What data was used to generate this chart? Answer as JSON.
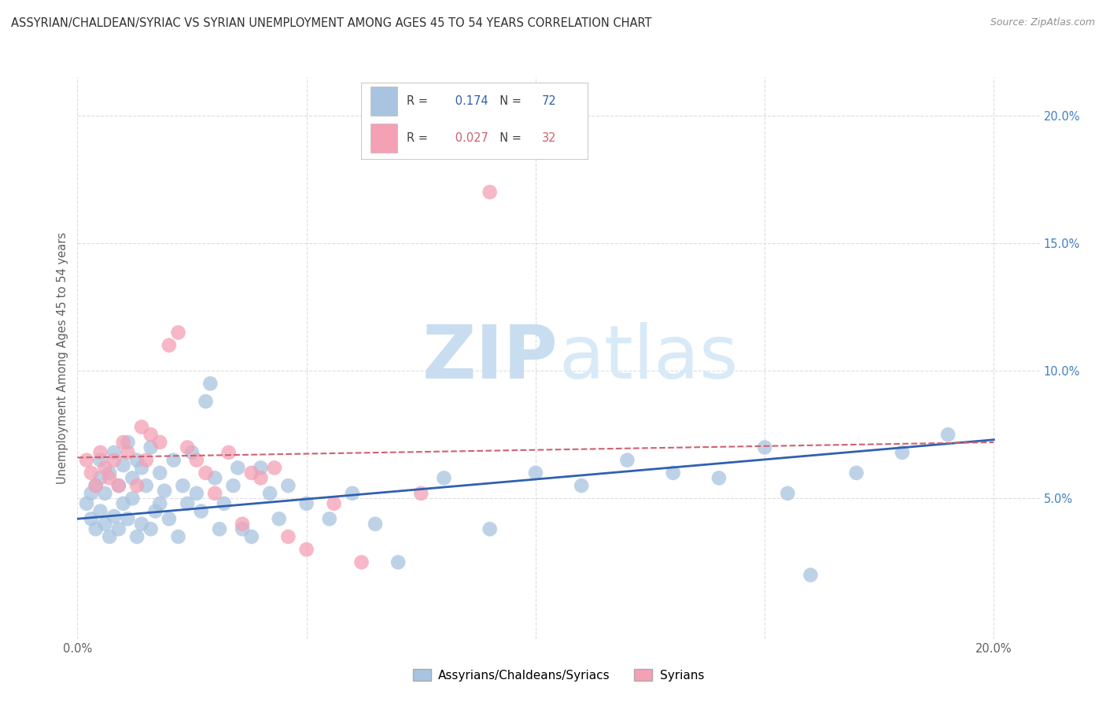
{
  "title": "ASSYRIAN/CHALDEAN/SYRIAC VS SYRIAN UNEMPLOYMENT AMONG AGES 45 TO 54 YEARS CORRELATION CHART",
  "source": "Source: ZipAtlas.com",
  "ylabel": "Unemployment Among Ages 45 to 54 years",
  "xlim": [
    0.0,
    0.21
  ],
  "ylim": [
    -0.005,
    0.215
  ],
  "yticks": [
    0.05,
    0.1,
    0.15,
    0.2
  ],
  "ytick_labels": [
    "5.0%",
    "10.0%",
    "15.0%",
    "20.0%"
  ],
  "xticks": [
    0.0,
    0.05,
    0.1,
    0.15,
    0.2
  ],
  "xtick_labels": [
    "0.0%",
    "",
    "",
    "",
    "20.0%"
  ],
  "blue_R": 0.174,
  "blue_N": 72,
  "pink_R": 0.027,
  "pink_N": 32,
  "blue_color": "#a8c4e0",
  "pink_color": "#f4a0b5",
  "blue_line_color": "#3060b0",
  "pink_line_color": "#d06070",
  "watermark_zip": "ZIP",
  "watermark_atlas": "atlas",
  "watermark_color": "#ddeeff",
  "background_color": "#ffffff",
  "grid_color": "#dddddd",
  "title_color": "#303030",
  "source_color": "#909090",
  "axis_color": "#606060",
  "right_axis_color": "#4080c0",
  "blue_scatter_x": [
    0.002,
    0.003,
    0.003,
    0.004,
    0.004,
    0.005,
    0.005,
    0.005,
    0.006,
    0.006,
    0.007,
    0.007,
    0.008,
    0.008,
    0.009,
    0.009,
    0.01,
    0.01,
    0.011,
    0.011,
    0.012,
    0.012,
    0.013,
    0.013,
    0.014,
    0.014,
    0.015,
    0.016,
    0.016,
    0.017,
    0.018,
    0.018,
    0.019,
    0.02,
    0.021,
    0.022,
    0.023,
    0.024,
    0.025,
    0.026,
    0.027,
    0.028,
    0.029,
    0.03,
    0.031,
    0.032,
    0.034,
    0.035,
    0.036,
    0.038,
    0.04,
    0.042,
    0.044,
    0.046,
    0.05,
    0.055,
    0.06,
    0.065,
    0.07,
    0.08,
    0.09,
    0.1,
    0.11,
    0.12,
    0.13,
    0.14,
    0.15,
    0.155,
    0.16,
    0.17,
    0.18,
    0.19
  ],
  "blue_scatter_y": [
    0.048,
    0.042,
    0.052,
    0.038,
    0.055,
    0.045,
    0.058,
    0.065,
    0.04,
    0.052,
    0.035,
    0.06,
    0.043,
    0.068,
    0.038,
    0.055,
    0.048,
    0.063,
    0.042,
    0.072,
    0.05,
    0.058,
    0.035,
    0.065,
    0.04,
    0.062,
    0.055,
    0.038,
    0.07,
    0.045,
    0.06,
    0.048,
    0.053,
    0.042,
    0.065,
    0.035,
    0.055,
    0.048,
    0.068,
    0.052,
    0.045,
    0.088,
    0.095,
    0.058,
    0.038,
    0.048,
    0.055,
    0.062,
    0.038,
    0.035,
    0.062,
    0.052,
    0.042,
    0.055,
    0.048,
    0.042,
    0.052,
    0.04,
    0.025,
    0.058,
    0.038,
    0.06,
    0.055,
    0.065,
    0.06,
    0.058,
    0.07,
    0.052,
    0.02,
    0.06,
    0.068,
    0.075
  ],
  "pink_scatter_x": [
    0.002,
    0.003,
    0.004,
    0.005,
    0.006,
    0.007,
    0.008,
    0.009,
    0.01,
    0.011,
    0.013,
    0.014,
    0.015,
    0.016,
    0.018,
    0.02,
    0.022,
    0.024,
    0.026,
    0.028,
    0.03,
    0.033,
    0.036,
    0.038,
    0.04,
    0.043,
    0.046,
    0.05,
    0.056,
    0.062,
    0.075,
    0.09
  ],
  "pink_scatter_y": [
    0.065,
    0.06,
    0.055,
    0.068,
    0.062,
    0.058,
    0.065,
    0.055,
    0.072,
    0.068,
    0.055,
    0.078,
    0.065,
    0.075,
    0.072,
    0.11,
    0.115,
    0.07,
    0.065,
    0.06,
    0.052,
    0.068,
    0.04,
    0.06,
    0.058,
    0.062,
    0.035,
    0.03,
    0.048,
    0.025,
    0.052,
    0.17
  ],
  "blue_trend_start_x": 0.0,
  "blue_trend_end_x": 0.2,
  "blue_trend_start_y": 0.042,
  "blue_trend_end_y": 0.073,
  "pink_trend_start_x": 0.0,
  "pink_trend_end_x": 0.2,
  "pink_trend_start_y": 0.066,
  "pink_trend_end_y": 0.072
}
